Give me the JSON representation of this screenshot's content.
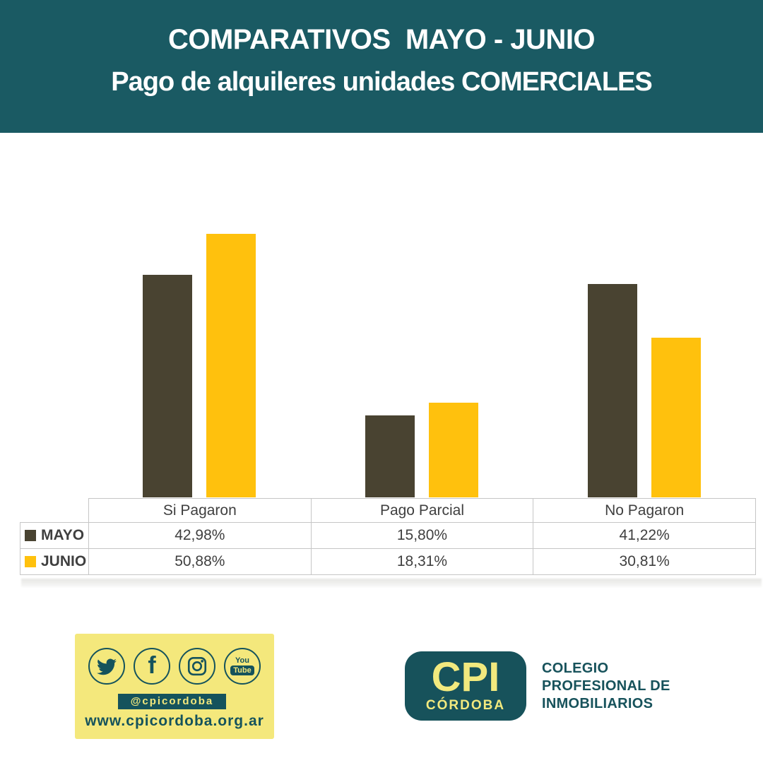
{
  "header": {
    "title": "COMPARATIVOS  MAYO - JUNIO",
    "subtitle": "Pago de alquileres unidades COMERCIALES",
    "bg_color": "#1A5A63",
    "text_color": "#FFFFFF"
  },
  "chart_data": {
    "type": "bar",
    "categories": [
      "Si Pagaron",
      "Pago Parcial",
      "No Pagaron"
    ],
    "series": [
      {
        "name": "MAYO",
        "color": "#494331",
        "values": [
          42.98,
          15.8,
          41.22
        ],
        "labels": [
          "42,98%",
          "15,80%",
          "41,22%"
        ]
      },
      {
        "name": "JUNIO",
        "color": "#FFC10D",
        "values": [
          50.88,
          18.31,
          30.81
        ],
        "labels": [
          "50,88%",
          "18,31%",
          "30,81%"
        ]
      }
    ],
    "ylim": [
      0,
      60
    ],
    "grid": false,
    "yaxis_visible": false,
    "legend_position": "table-rows-left",
    "value_format": "percent-comma"
  },
  "footer": {
    "social": {
      "handle": "@cpicordoba",
      "website": "www.cpicordoba.org.ar",
      "icons": [
        "twitter-icon",
        "facebook-icon",
        "instagram-icon",
        "youtube-icon"
      ],
      "facebook_glyph": "f",
      "youtube_top": "You",
      "youtube_bottom": "Tube",
      "box_bg": "#F4E87C",
      "accent": "#15535C"
    },
    "logo": {
      "acronym": "CPI",
      "city": "CÓRDOBA",
      "org_lines": [
        "COLEGIO",
        "PROFESIONAL DE",
        "INMOBILIARIOS"
      ]
    }
  }
}
